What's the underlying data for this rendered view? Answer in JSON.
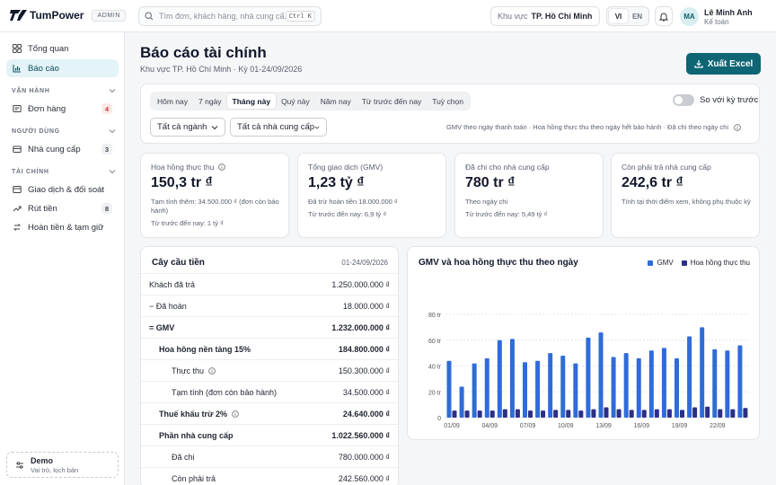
{
  "app": {
    "brand": "TumPower",
    "role_tag": "ADMIN"
  },
  "search": {
    "placeholder": "Tìm đơn, khách hàng, nhà cung cấ...",
    "shortcut": "Ctrl K"
  },
  "region": {
    "label": "Khu vực",
    "value": "TP. Hồ Chí Minh"
  },
  "lang": {
    "options": [
      "VI",
      "EN"
    ],
    "selected": "VI"
  },
  "user": {
    "initials": "MA",
    "name": "Lê Minh Anh",
    "role": "Kế toán"
  },
  "sidebar": {
    "items": [
      {
        "label": "Tổng quan",
        "icon": "grid-icon"
      },
      {
        "label": "Báo cáo",
        "icon": "chart-icon",
        "active": true
      }
    ],
    "sections": [
      {
        "title": "VẬN HÀNH",
        "items": [
          {
            "label": "Đơn hàng",
            "icon": "receipt-icon",
            "badge": "4"
          }
        ]
      },
      {
        "title": "NGƯỜI DÙNG",
        "items": [
          {
            "label": "Nhà cung cấp",
            "icon": "store-icon",
            "badge": "3"
          }
        ]
      },
      {
        "title": "TÀI CHÍNH",
        "items": [
          {
            "label": "Giao dịch & đối soát",
            "icon": "transaction-icon"
          },
          {
            "label": "Rút tiền",
            "icon": "withdraw-icon",
            "badge": "8"
          },
          {
            "label": "Hoàn tiền & tạm giữ",
            "icon": "refund-icon"
          }
        ]
      }
    ],
    "demo": {
      "title": "Demo",
      "subtitle": "Vai trò, kịch bản"
    }
  },
  "header": {
    "title": "Báo cáo tài chính",
    "subtitle": "Khu vực TP. Hồ Chí Minh · Kỳ 01-24/09/2026",
    "export_label": "Xuất Excel"
  },
  "filters": {
    "periods": [
      "Hôm nay",
      "7 ngày",
      "Tháng này",
      "Quý này",
      "Năm nay",
      "Từ trước đến nay",
      "Tuỳ chọn"
    ],
    "selected_period": "Tháng này",
    "compare_label": "So với kỳ trước",
    "compare_on": false,
    "industry": "Tất cả ngành",
    "supplier": "Tất cả nhà cung cấp",
    "note": "GMV theo ngày thanh toán · Hoa hồng thực thu theo ngày hết bảo hành · Đã chi theo ngày chi"
  },
  "kpis": [
    {
      "label": "Hoa hồng thực thu",
      "value": "150,3 tr ₫",
      "detail": "Tạm tính thêm: 34.500.000 ₫ (đơn còn bảo hành)",
      "prior": "Từ trước đến nay: 1 tỷ ₫"
    },
    {
      "label": "Tổng giao dịch (GMV)",
      "value": "1,23 tỷ ₫",
      "detail": "Đã trừ hoàn tiền 18.000.000 ₫",
      "prior": "Từ trước đến nay: 6,9 tỷ ₫"
    },
    {
      "label": "Đã chi cho nhà cung cấp",
      "value": "780 tr ₫",
      "detail": "Theo ngày chi",
      "prior": "Từ trước đến nay: 5,49 tỷ ₫"
    },
    {
      "label": "Còn phải trả nhà cung cấp",
      "value": "242,6 tr ₫",
      "detail": "Tính tại thời điểm xem, không phụ thuộc kỳ",
      "prior": ""
    }
  ],
  "tree": {
    "title": "Cây cầu tiền",
    "period": "01-24/09/2026",
    "rows": [
      {
        "label": "Khách đã trả",
        "amount": "1.250.000.000 ₫"
      },
      {
        "label": "−  Đã hoàn",
        "amount": "18.000.000 ₫"
      },
      {
        "label": "=  GMV",
        "amount": "1.232.000.000 ₫"
      },
      {
        "label": "Hoa hồng nền tảng 15%",
        "amount": "184.800.000 ₫"
      },
      {
        "label": "Thực thu",
        "amount": "150.300.000 ₫"
      },
      {
        "label": "Tạm tính (đơn còn bảo hành)",
        "amount": "34.500.000 ₫"
      },
      {
        "label": "Thuế khấu trừ 2%",
        "amount": "24.640.000 ₫"
      },
      {
        "label": "Phần nhà cung cấp",
        "amount": "1.022.560.000 ₫"
      },
      {
        "label": "Đã chi",
        "amount": "780.000.000 ₫"
      },
      {
        "label": "Còn phải trả",
        "amount": "242.560.000 ₫"
      }
    ]
  },
  "chart_data": {
    "type": "bar",
    "title": "GMV và hoa hồng thực thu theo ngày",
    "x": [
      "01/09",
      "02/09",
      "03/09",
      "04/09",
      "05/09",
      "06/09",
      "07/09",
      "08/09",
      "09/09",
      "10/09",
      "11/09",
      "12/09",
      "13/09",
      "14/09",
      "15/09",
      "16/09",
      "17/09",
      "18/09",
      "19/09",
      "20/09",
      "21/09",
      "22/09",
      "23/09",
      "24/09"
    ],
    "xticks": [
      "01/09",
      "04/09",
      "07/09",
      "10/09",
      "13/09",
      "16/09",
      "19/09",
      "22/09"
    ],
    "series": [
      {
        "name": "GMV",
        "color": "#2f6bd9",
        "values": [
          44,
          24,
          42,
          46,
          60,
          61,
          43,
          44,
          50,
          48,
          42,
          62,
          66,
          47,
          50,
          46,
          52,
          54,
          46,
          63,
          70,
          53,
          52,
          56
        ]
      },
      {
        "name": "Hoa hồng thực thu",
        "color": "#2c2f86",
        "values": [
          5.5,
          5.5,
          5.5,
          5.5,
          6.5,
          6.5,
          5.5,
          5.5,
          6,
          6,
          5.5,
          6.5,
          8,
          6.5,
          6,
          6,
          6.5,
          6.5,
          6,
          8,
          8.5,
          6.5,
          6.5,
          7.5
        ]
      }
    ],
    "yticks": [
      "0",
      "20 tr",
      "40 tr",
      "60 tr",
      "80 tr"
    ],
    "ylim": [
      0,
      80
    ],
    "grid": true,
    "legend": "top-right"
  }
}
